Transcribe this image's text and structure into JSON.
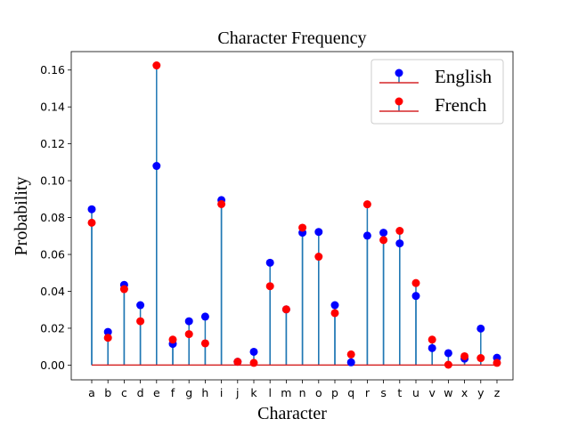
{
  "chart_data": {
    "type": "stem",
    "title": "Character Frequency",
    "xlabel": "Character",
    "ylabel": "Probability",
    "ylim": [
      -0.008,
      0.17
    ],
    "yticks": [
      "0.00",
      "0.02",
      "0.04",
      "0.06",
      "0.08",
      "0.10",
      "0.12",
      "0.14",
      "0.16"
    ],
    "categories": [
      "a",
      "b",
      "c",
      "d",
      "e",
      "f",
      "g",
      "h",
      "i",
      "j",
      "k",
      "l",
      "m",
      "n",
      "o",
      "p",
      "q",
      "r",
      "s",
      "t",
      "u",
      "v",
      "w",
      "x",
      "y",
      "z"
    ],
    "legend_position": "upper right",
    "baseline": {
      "value": 0,
      "color": "#d62728"
    },
    "stem_color": "#1f77b4",
    "series": [
      {
        "name": "English",
        "color": "#0000ff",
        "values": [
          0.0845,
          0.018,
          0.0435,
          0.0325,
          0.108,
          0.0115,
          0.0238,
          0.0263,
          0.0895,
          0.0018,
          0.0072,
          0.0555,
          0.0302,
          0.0718,
          0.0722,
          0.0325,
          0.0015,
          0.0702,
          0.0718,
          0.066,
          0.0375,
          0.0092,
          0.0065,
          0.0035,
          0.0198,
          0.004
        ]
      },
      {
        "name": "French",
        "color": "#ff0000",
        "values": [
          0.0772,
          0.0148,
          0.0412,
          0.0238,
          0.1625,
          0.0138,
          0.0168,
          0.0118,
          0.0873,
          0.0018,
          0.0012,
          0.0428,
          0.0302,
          0.0745,
          0.0588,
          0.0282,
          0.0058,
          0.0872,
          0.0678,
          0.0728,
          0.0445,
          0.0138,
          0.0002,
          0.0048,
          0.0038,
          0.0012
        ]
      }
    ]
  }
}
